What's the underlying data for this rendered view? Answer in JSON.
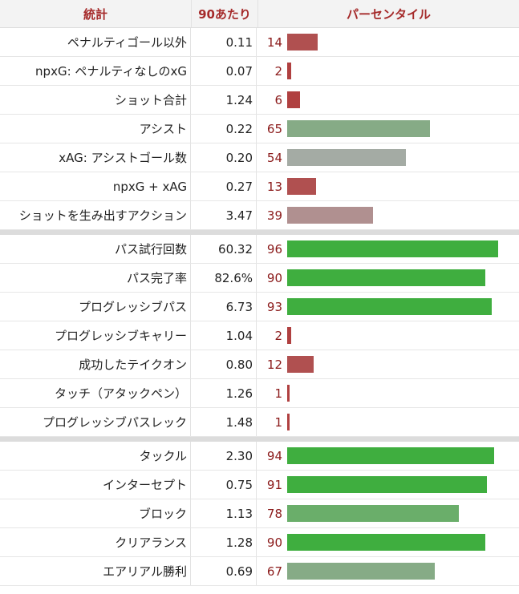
{
  "header": {
    "stat": "統計",
    "per90": "90あたり",
    "percentile": "パーセンタイル"
  },
  "groups": [
    [
      {
        "stat": "ペナルティゴール以外",
        "value": "0.11",
        "pct": 14,
        "color": "#b05050"
      },
      {
        "stat": "npxG: ペナルティなしのxG",
        "value": "0.07",
        "pct": 2,
        "color": "#b04040"
      },
      {
        "stat": "ショット合計",
        "value": "1.24",
        "pct": 6,
        "color": "#b04040"
      },
      {
        "stat": "アシスト",
        "value": "0.22",
        "pct": 65,
        "color": "#86ab86"
      },
      {
        "stat": "xAG: アシストゴール数",
        "value": "0.20",
        "pct": 54,
        "color": "#a4ab a4"
      },
      {
        "stat": "npxG + xAG",
        "value": "0.27",
        "pct": 13,
        "color": "#b05050"
      },
      {
        "stat": "ショットを生み出すアクション",
        "value": "3.47",
        "pct": 39,
        "color": "#b09090"
      }
    ],
    [
      {
        "stat": "パス試行回数",
        "value": "60.32",
        "pct": 96,
        "color": "#3fae3f"
      },
      {
        "stat": "パス完了率",
        "value": "82.6%",
        "pct": 90,
        "color": "#3fae3f"
      },
      {
        "stat": "プログレッシブパス",
        "value": "6.73",
        "pct": 93,
        "color": "#3fae3f"
      },
      {
        "stat": "プログレッシブキャリー",
        "value": "1.04",
        "pct": 2,
        "color": "#b04040"
      },
      {
        "stat": "成功したテイクオン",
        "value": "0.80",
        "pct": 12,
        "color": "#b05050"
      },
      {
        "stat": "タッチ（アタックペン）",
        "value": "1.26",
        "pct": 1,
        "color": "#b04040"
      },
      {
        "stat": "プログレッシブパスレック",
        "value": "1.48",
        "pct": 1,
        "color": "#b04040"
      }
    ],
    [
      {
        "stat": "タックル",
        "value": "2.30",
        "pct": 94,
        "color": "#3fae3f"
      },
      {
        "stat": "インターセプト",
        "value": "0.75",
        "pct": 91,
        "color": "#3fae3f"
      },
      {
        "stat": "ブロック",
        "value": "1.13",
        "pct": 78,
        "color": "#6aae6a"
      },
      {
        "stat": "クリアランス",
        "value": "1.28",
        "pct": 90,
        "color": "#3fae3f"
      },
      {
        "stat": "エアリアル勝利",
        "value": "0.69",
        "pct": 67,
        "color": "#86ab86"
      }
    ]
  ]
}
